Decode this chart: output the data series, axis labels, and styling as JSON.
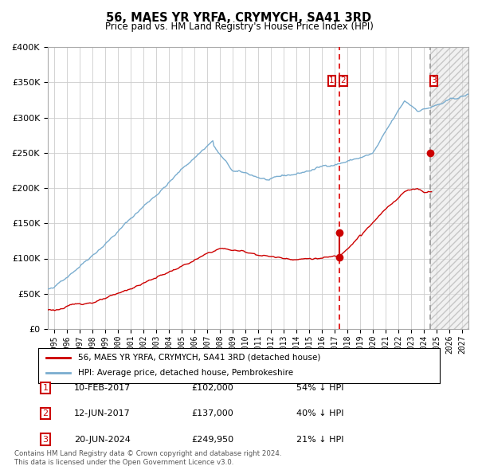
{
  "title": "56, MAES YR YRFA, CRYMYCH, SA41 3RD",
  "subtitle": "Price paid vs. HM Land Registry's House Price Index (HPI)",
  "legend_property": "56, MAES YR YRFA, CRYMYCH, SA41 3RD (detached house)",
  "legend_hpi": "HPI: Average price, detached house, Pembrokeshire",
  "footer1": "Contains HM Land Registry data © Crown copyright and database right 2024.",
  "footer2": "This data is licensed under the Open Government Licence v3.0.",
  "sale_events": [
    {
      "num": 1,
      "date": "10-FEB-2017",
      "price": "£102,000",
      "pct": "54% ↓ HPI"
    },
    {
      "num": 2,
      "date": "12-JUN-2017",
      "price": "£137,000",
      "pct": "40% ↓ HPI"
    },
    {
      "num": 3,
      "date": "20-JUN-2024",
      "price": "£249,950",
      "pct": "21% ↓ HPI"
    }
  ],
  "sale12_date_num": 2017.38,
  "sale1_price": 102000,
  "sale2_price": 137000,
  "sale3_date_num": 2024.47,
  "sale3_price": 249950,
  "color_property": "#cc0000",
  "color_hpi": "#7aadcf",
  "color_vline12": "#dd0000",
  "color_vline3": "#999999",
  "ylim": [
    0,
    400000
  ],
  "xlim_start": 1994.5,
  "xlim_end": 2027.5,
  "background_color": "#ffffff",
  "grid_color": "#cccccc"
}
